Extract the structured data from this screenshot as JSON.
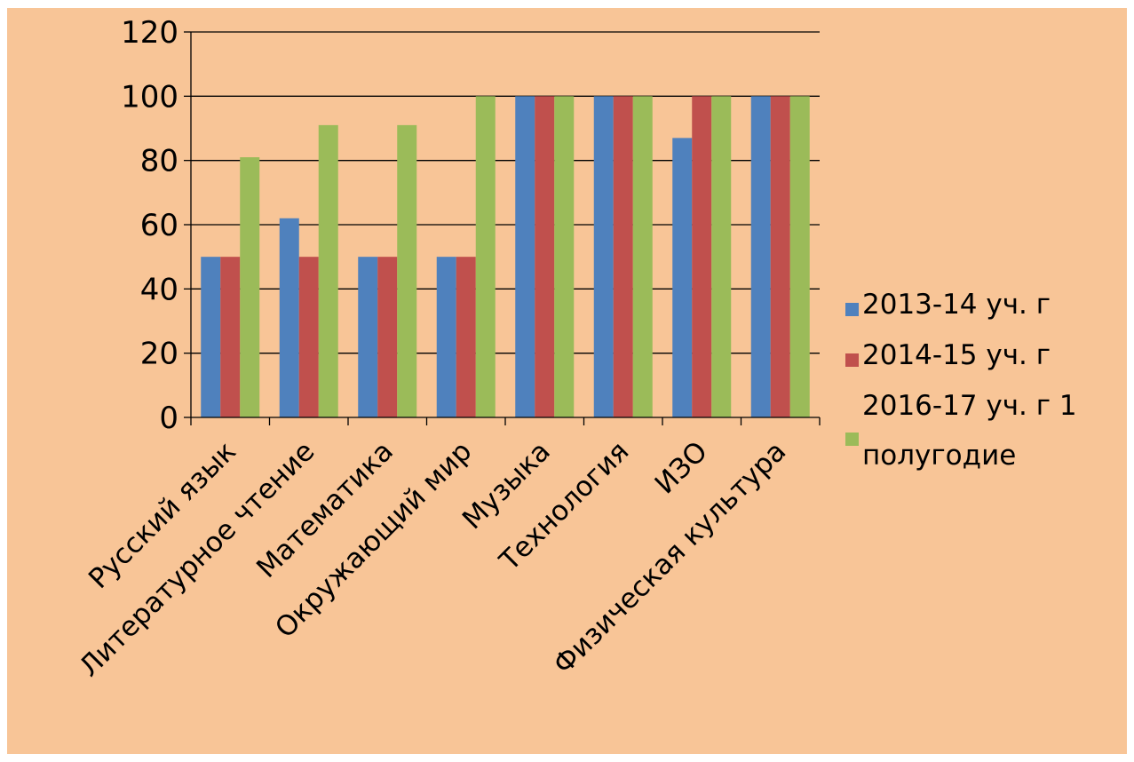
{
  "chart_data": {
    "type": "bar",
    "categories": [
      "Русский язык",
      "Литературное чтение",
      "Математика",
      "Окружающий мир",
      "Музыка",
      "Технология",
      "ИЗО",
      "Физическая культура"
    ],
    "series": [
      {
        "name": "2013-14 уч. г",
        "color": "#4f81bd",
        "values": [
          50,
          62,
          50,
          50,
          100,
          100,
          87,
          100
        ]
      },
      {
        "name": "2014-15 уч. г",
        "color": "#c0504d",
        "values": [
          50,
          50,
          50,
          50,
          100,
          100,
          100,
          100
        ]
      },
      {
        "name": "2016-17 уч. г 1 полугодие",
        "legend_lines": [
          "2016-17 уч. г 1",
          "полугодие"
        ],
        "color": "#9bbb59",
        "values": [
          81,
          91,
          91,
          100,
          100,
          100,
          100,
          100
        ]
      }
    ],
    "ylim": [
      0,
      120
    ],
    "yticks": [
      0,
      20,
      40,
      60,
      80,
      100,
      120
    ],
    "grid": true,
    "legend_position": "right",
    "background": "#f8c597"
  }
}
